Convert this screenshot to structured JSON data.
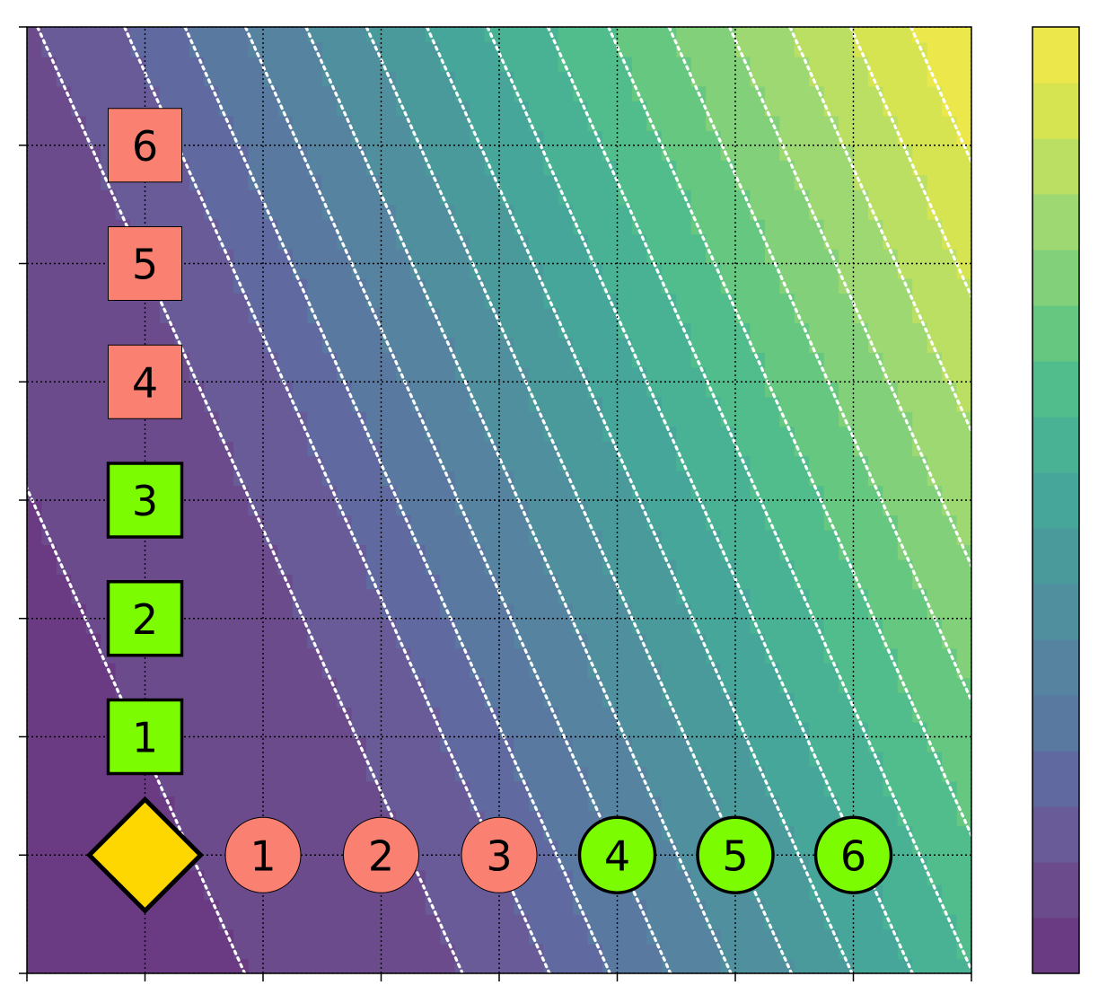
{
  "chart_data": {
    "type": "heatmap",
    "title": "",
    "xlabel": "",
    "ylabel": "",
    "xlim": [
      0,
      8
    ],
    "ylim": [
      0,
      8
    ],
    "x_ticks": [
      0,
      1,
      2,
      3,
      4,
      5,
      6,
      7,
      8
    ],
    "y_ticks": [
      0,
      1,
      2,
      3,
      4,
      5,
      6,
      7,
      8
    ],
    "tick_labels_shown": false,
    "grid": true,
    "grid_style": "dotted",
    "colormap": "viridis",
    "colorbar": {
      "levels": 17,
      "tick_labels_shown": false
    },
    "contour_lines": {
      "color": "#ffffff",
      "style": "dotted"
    },
    "start_marker": {
      "shape": "diamond",
      "x": 1,
      "y": 1,
      "color": "#FFD700"
    },
    "row_markers": {
      "shape": "circle",
      "items": [
        {
          "label": "1",
          "x": 2,
          "y": 1,
          "color": "#FA8072",
          "bold_edge": false
        },
        {
          "label": "2",
          "x": 3,
          "y": 1,
          "color": "#FA8072",
          "bold_edge": false
        },
        {
          "label": "3",
          "x": 4,
          "y": 1,
          "color": "#FA8072",
          "bold_edge": false
        },
        {
          "label": "4",
          "x": 5,
          "y": 1,
          "color": "#7CFC00",
          "bold_edge": true
        },
        {
          "label": "5",
          "x": 6,
          "y": 1,
          "color": "#7CFC00",
          "bold_edge": true
        },
        {
          "label": "6",
          "x": 7,
          "y": 1,
          "color": "#7CFC00",
          "bold_edge": true
        }
      ]
    },
    "column_markers": {
      "shape": "square",
      "items": [
        {
          "label": "1",
          "x": 1,
          "y": 2,
          "color": "#7CFC00",
          "bold_edge": true
        },
        {
          "label": "2",
          "x": 1,
          "y": 3,
          "color": "#7CFC00",
          "bold_edge": true
        },
        {
          "label": "3",
          "x": 1,
          "y": 4,
          "color": "#7CFC00",
          "bold_edge": true
        },
        {
          "label": "4",
          "x": 1,
          "y": 5,
          "color": "#FA8072",
          "bold_edge": false
        },
        {
          "label": "5",
          "x": 1,
          "y": 6,
          "color": "#FA8072",
          "bold_edge": false
        },
        {
          "label": "6",
          "x": 1,
          "y": 7,
          "color": "#FA8072",
          "bold_edge": false
        }
      ]
    }
  }
}
